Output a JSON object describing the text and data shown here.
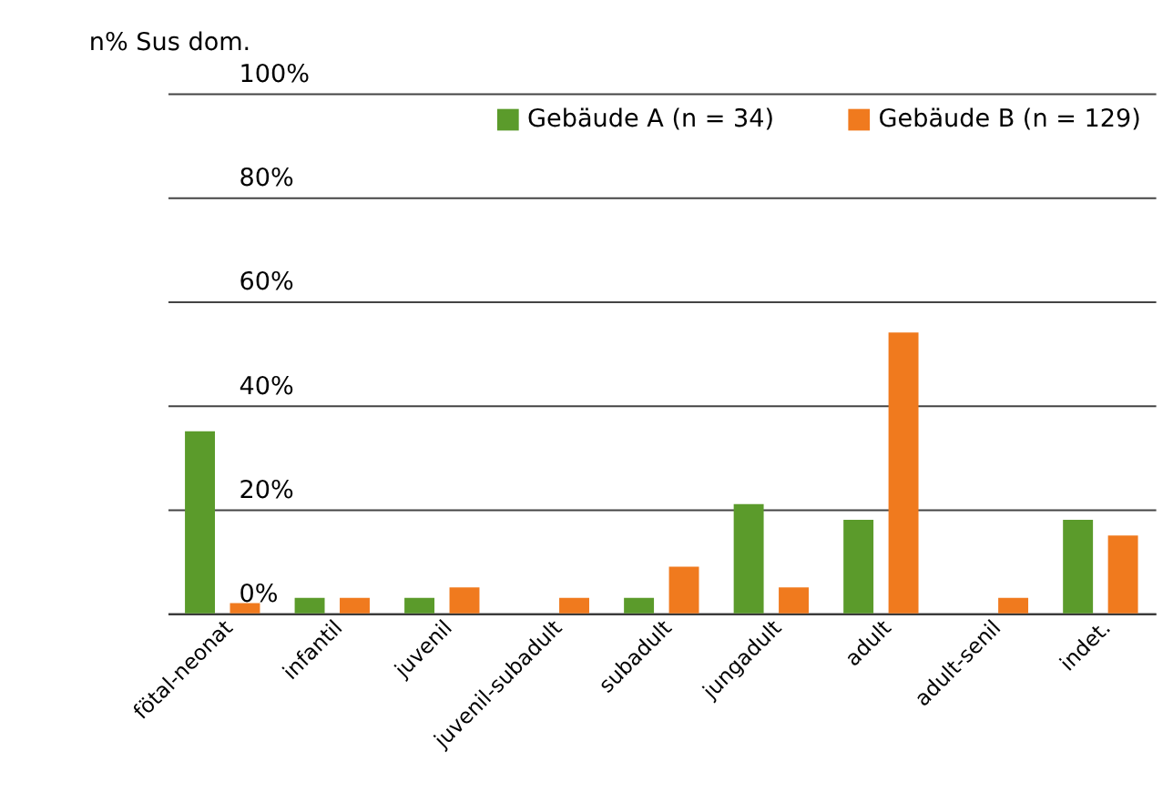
{
  "chart_data": {
    "type": "bar",
    "ylabel": "n%  Sus dom.",
    "categories": [
      "fötal-neonat",
      "infantil",
      "juvenil",
      "juvenil-subadult",
      "subadult",
      "jungadult",
      "adult",
      "adult-senil",
      "indet."
    ],
    "series": [
      {
        "name": "Gebäude A (n = 34)",
        "color": "#5b9b2b",
        "values": [
          35,
          3,
          3,
          0,
          3,
          21,
          18,
          0,
          18
        ]
      },
      {
        "name": "Gebäude B (n = 129)",
        "color": "#f07a1e",
        "values": [
          2,
          3,
          5,
          3,
          9,
          5,
          54,
          3,
          15
        ]
      }
    ],
    "ylim": [
      0,
      100
    ],
    "yticks": [
      {
        "value": 0,
        "label": "0%"
      },
      {
        "value": 20,
        "label": "20%"
      },
      {
        "value": 40,
        "label": "40%"
      },
      {
        "value": 60,
        "label": "60%"
      },
      {
        "value": 80,
        "label": "80%"
      },
      {
        "value": 100,
        "label": "100%"
      }
    ],
    "grid": "y",
    "legend": "top right"
  }
}
